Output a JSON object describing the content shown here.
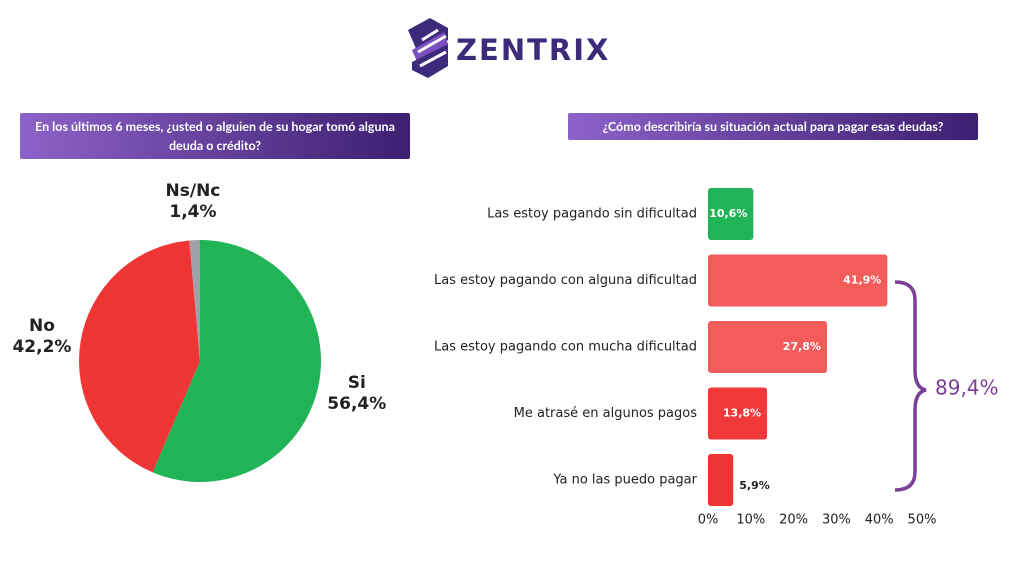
{
  "logo": "ZENTRIX",
  "chart_data": [
    {
      "type": "pie",
      "title": "En los últimos 6 meses, ¿usted o alguien de su hogar tomó alguna deuda o crédito?",
      "categories": [
        "Si",
        "No",
        "Ns/Nc"
      ],
      "values": [
        56.4,
        42.2,
        1.4
      ],
      "value_labels": [
        "56,4%",
        "42,2%",
        "1,4%"
      ],
      "colors": [
        "#20b457",
        "#f03535",
        "#a0a0a8"
      ]
    },
    {
      "type": "bar",
      "orientation": "horizontal",
      "title": "¿Cómo describiría su situación actual para pagar esas deudas?",
      "categories": [
        "Las estoy pagando sin dificultad",
        "Las estoy pagando con alguna dificultad",
        "Las estoy pagando con mucha dificultad",
        "Me atrasé en algunos pagos",
        "Ya no las puedo pagar"
      ],
      "values": [
        10.6,
        41.9,
        27.8,
        13.8,
        5.9
      ],
      "value_labels": [
        "10,6%",
        "41,9%",
        "27,8%",
        "13,8%",
        "5,9%"
      ],
      "colors": [
        "#20b457",
        "#f45b5b",
        "#f45b5b",
        "#f03a3a",
        "#ee3333"
      ],
      "xlim": [
        0,
        50
      ],
      "xticks": [
        {
          "value": 0,
          "label": "0%"
        },
        {
          "value": 10,
          "label": "10%"
        },
        {
          "value": 20,
          "label": "20%"
        },
        {
          "value": 30,
          "label": "30%"
        },
        {
          "value": 40,
          "label": "40%"
        },
        {
          "value": 50,
          "label": "50%"
        }
      ],
      "annotation": "89,4%"
    }
  ]
}
